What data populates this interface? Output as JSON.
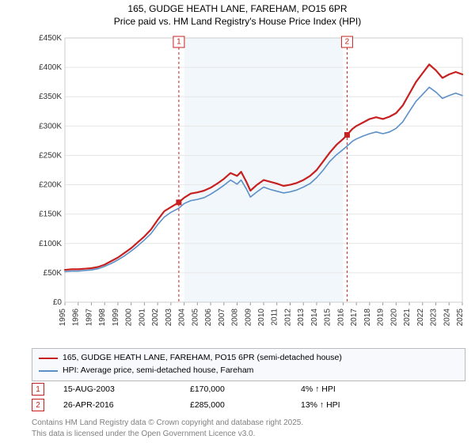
{
  "title_line1": "165, GUDGE HEATH LANE, FAREHAM, PO15 6PR",
  "title_line2": "Price paid vs. HM Land Registry's House Price Index (HPI)",
  "chart": {
    "type": "line",
    "xlim": [
      1995,
      2025
    ],
    "ylim": [
      0,
      450000
    ],
    "ytick_step": 50000,
    "xtick_step": 1,
    "ytick_labels": [
      "£0",
      "£50K",
      "£100K",
      "£150K",
      "£200K",
      "£250K",
      "£300K",
      "£350K",
      "£400K",
      "£450K"
    ],
    "xtick_labels": [
      "1995",
      "1996",
      "1997",
      "1998",
      "1999",
      "2000",
      "2001",
      "2002",
      "2003",
      "2004",
      "2005",
      "2006",
      "2007",
      "2008",
      "2009",
      "2010",
      "2011",
      "2012",
      "2013",
      "2014",
      "2015",
      "2016",
      "2017",
      "2018",
      "2019",
      "2020",
      "2021",
      "2022",
      "2023",
      "2024",
      "2025"
    ],
    "background_color": "#ffffff",
    "grid_band_start": 2004,
    "grid_band_end": 2016,
    "grid_band_color": "#f2f7fb",
    "grid_color": "#e6e6e6",
    "series": [
      {
        "name": "property_red",
        "color": "#c62020",
        "width": 2.2,
        "data": [
          [
            1995,
            55000
          ],
          [
            1995.5,
            56000
          ],
          [
            1996,
            56000
          ],
          [
            1996.5,
            57000
          ],
          [
            1997,
            58000
          ],
          [
            1997.5,
            60000
          ],
          [
            1998,
            64000
          ],
          [
            1998.5,
            70000
          ],
          [
            1999,
            76000
          ],
          [
            1999.5,
            84000
          ],
          [
            2000,
            92000
          ],
          [
            2000.5,
            102000
          ],
          [
            2001,
            112000
          ],
          [
            2001.5,
            124000
          ],
          [
            2002,
            140000
          ],
          [
            2002.5,
            155000
          ],
          [
            2003,
            162000
          ],
          [
            2003.6,
            170000
          ],
          [
            2004,
            178000
          ],
          [
            2004.5,
            185000
          ],
          [
            2005,
            187000
          ],
          [
            2005.5,
            190000
          ],
          [
            2006,
            195000
          ],
          [
            2006.5,
            202000
          ],
          [
            2007,
            210000
          ],
          [
            2007.5,
            220000
          ],
          [
            2008,
            215000
          ],
          [
            2008.3,
            222000
          ],
          [
            2008.7,
            205000
          ],
          [
            2009,
            190000
          ],
          [
            2009.5,
            200000
          ],
          [
            2010,
            208000
          ],
          [
            2010.5,
            205000
          ],
          [
            2011,
            202000
          ],
          [
            2011.5,
            198000
          ],
          [
            2012,
            200000
          ],
          [
            2012.5,
            203000
          ],
          [
            2013,
            208000
          ],
          [
            2013.5,
            215000
          ],
          [
            2014,
            225000
          ],
          [
            2014.5,
            240000
          ],
          [
            2015,
            255000
          ],
          [
            2015.5,
            268000
          ],
          [
            2016,
            278000
          ],
          [
            2016.3,
            285000
          ],
          [
            2016.7,
            295000
          ],
          [
            2017,
            300000
          ],
          [
            2017.5,
            306000
          ],
          [
            2018,
            312000
          ],
          [
            2018.5,
            315000
          ],
          [
            2019,
            312000
          ],
          [
            2019.5,
            316000
          ],
          [
            2020,
            322000
          ],
          [
            2020.5,
            335000
          ],
          [
            2021,
            355000
          ],
          [
            2021.5,
            375000
          ],
          [
            2022,
            390000
          ],
          [
            2022.5,
            405000
          ],
          [
            2023,
            395000
          ],
          [
            2023.5,
            382000
          ],
          [
            2024,
            388000
          ],
          [
            2024.5,
            392000
          ],
          [
            2025,
            388000
          ]
        ]
      },
      {
        "name": "hpi_blue",
        "color": "#5a8fc8",
        "width": 1.6,
        "data": [
          [
            1995,
            52000
          ],
          [
            1995.5,
            53000
          ],
          [
            1996,
            53000
          ],
          [
            1996.5,
            54000
          ],
          [
            1997,
            55000
          ],
          [
            1997.5,
            57000
          ],
          [
            1998,
            61000
          ],
          [
            1998.5,
            66000
          ],
          [
            1999,
            72000
          ],
          [
            1999.5,
            79000
          ],
          [
            2000,
            87000
          ],
          [
            2000.5,
            96000
          ],
          [
            2001,
            106000
          ],
          [
            2001.5,
            117000
          ],
          [
            2002,
            132000
          ],
          [
            2002.5,
            145000
          ],
          [
            2003,
            153000
          ],
          [
            2003.6,
            160000
          ],
          [
            2004,
            168000
          ],
          [
            2004.5,
            173000
          ],
          [
            2005,
            175000
          ],
          [
            2005.5,
            178000
          ],
          [
            2006,
            184000
          ],
          [
            2006.5,
            191000
          ],
          [
            2007,
            199000
          ],
          [
            2007.5,
            208000
          ],
          [
            2008,
            201000
          ],
          [
            2008.3,
            208000
          ],
          [
            2008.7,
            193000
          ],
          [
            2009,
            179000
          ],
          [
            2009.5,
            188000
          ],
          [
            2010,
            196000
          ],
          [
            2010.5,
            192000
          ],
          [
            2011,
            189000
          ],
          [
            2011.5,
            186000
          ],
          [
            2012,
            188000
          ],
          [
            2012.5,
            191000
          ],
          [
            2013,
            196000
          ],
          [
            2013.5,
            202000
          ],
          [
            2014,
            212000
          ],
          [
            2014.5,
            225000
          ],
          [
            2015,
            240000
          ],
          [
            2015.5,
            251000
          ],
          [
            2016,
            260000
          ],
          [
            2016.3,
            266000
          ],
          [
            2016.7,
            274000
          ],
          [
            2017,
            278000
          ],
          [
            2017.5,
            283000
          ],
          [
            2018,
            287000
          ],
          [
            2018.5,
            290000
          ],
          [
            2019,
            287000
          ],
          [
            2019.5,
            290000
          ],
          [
            2020,
            296000
          ],
          [
            2020.5,
            307000
          ],
          [
            2021,
            325000
          ],
          [
            2021.5,
            342000
          ],
          [
            2022,
            354000
          ],
          [
            2022.5,
            366000
          ],
          [
            2023,
            358000
          ],
          [
            2023.5,
            347000
          ],
          [
            2024,
            352000
          ],
          [
            2024.5,
            356000
          ],
          [
            2025,
            352000
          ]
        ]
      }
    ],
    "markers": [
      {
        "num": "1",
        "x": 2003.6,
        "y": 170000
      },
      {
        "num": "2",
        "x": 2016.3,
        "y": 285000
      }
    ]
  },
  "legend": {
    "items": [
      {
        "color": "#c62020",
        "label": "165, GUDGE HEATH LANE, FAREHAM, PO15 6PR (semi-detached house)"
      },
      {
        "color": "#5a8fc8",
        "label": "HPI: Average price, semi-detached house, Fareham"
      }
    ]
  },
  "sales": [
    {
      "num": "1",
      "date": "15-AUG-2003",
      "price": "£170,000",
      "pct": "4% ↑ HPI"
    },
    {
      "num": "2",
      "date": "26-APR-2016",
      "price": "£285,000",
      "pct": "13% ↑ HPI"
    }
  ],
  "copyright_line1": "Contains HM Land Registry data © Crown copyright and database right 2025.",
  "copyright_line2": "This data is licensed under the Open Government Licence v3.0."
}
